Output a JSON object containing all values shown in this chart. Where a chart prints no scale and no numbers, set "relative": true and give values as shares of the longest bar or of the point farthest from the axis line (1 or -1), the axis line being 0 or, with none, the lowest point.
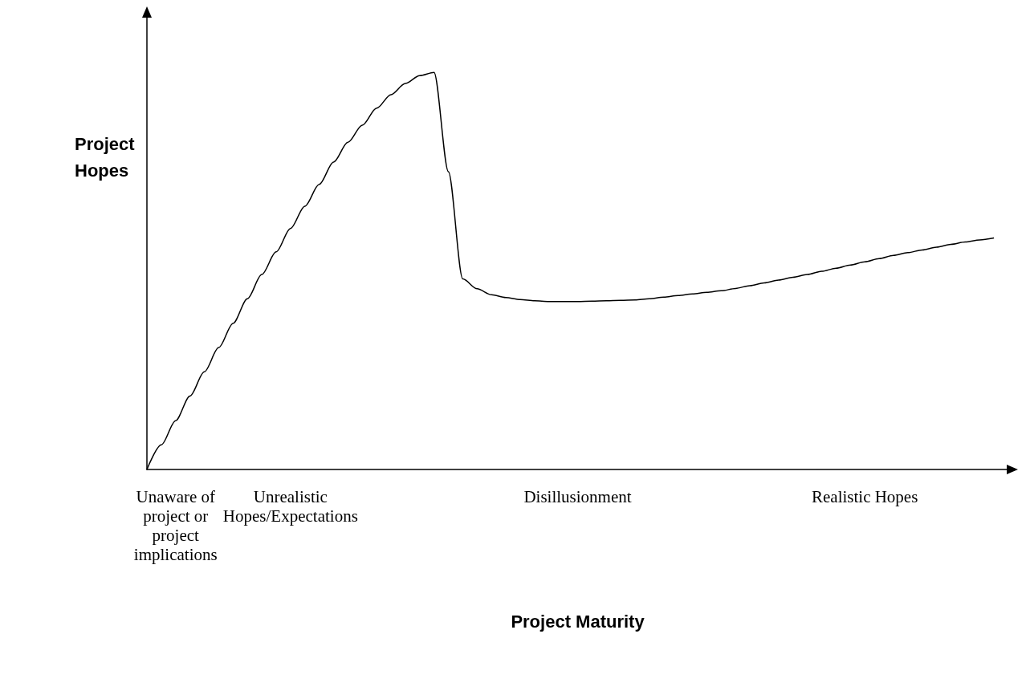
{
  "chart_data": {
    "type": "line",
    "relative": true,
    "xlabel": "Project Maturity",
    "ylabel": "Project Hopes",
    "color": "#000000",
    "marker": "none",
    "line_style": "solid",
    "grid": false,
    "categories": [
      null,
      null,
      "Unaware of\nproject or\nproject\nimplications",
      null,
      null,
      null,
      null,
      null,
      null,
      null,
      "Unrealistic\nHopes/Expectations",
      null,
      null,
      null,
      null,
      null,
      null,
      null,
      null,
      null,
      null,
      null,
      null,
      null,
      null,
      null,
      null,
      null,
      null,
      null,
      "Disillusionment",
      null,
      null,
      null,
      null,
      null,
      null,
      null,
      null,
      null,
      null,
      null,
      null,
      null,
      null,
      null,
      null,
      null,
      null,
      null,
      "Realistic Hopes",
      null,
      null,
      null,
      null,
      null,
      null,
      null,
      null,
      null,
      null
    ],
    "values": [
      0,
      0.062,
      0.123,
      0.185,
      0.246,
      0.307,
      0.368,
      0.43,
      0.491,
      0.548,
      0.607,
      0.663,
      0.718,
      0.774,
      0.824,
      0.867,
      0.91,
      0.944,
      0.972,
      0.992,
      1,
      0.75,
      0.48,
      0.455,
      0.44,
      0.433,
      0.428,
      0.425,
      0.423,
      0.423,
      0.423,
      0.424,
      0.425,
      0.426,
      0.427,
      0.43,
      0.434,
      0.438,
      0.442,
      0.446,
      0.45,
      0.456,
      0.463,
      0.47,
      0.477,
      0.484,
      0.491,
      0.499,
      0.507,
      0.515,
      0.523,
      0.531,
      0.539,
      0.546,
      0.553,
      0.56,
      0.567,
      0.573,
      0.578,
      0.583,
      null
    ]
  }
}
